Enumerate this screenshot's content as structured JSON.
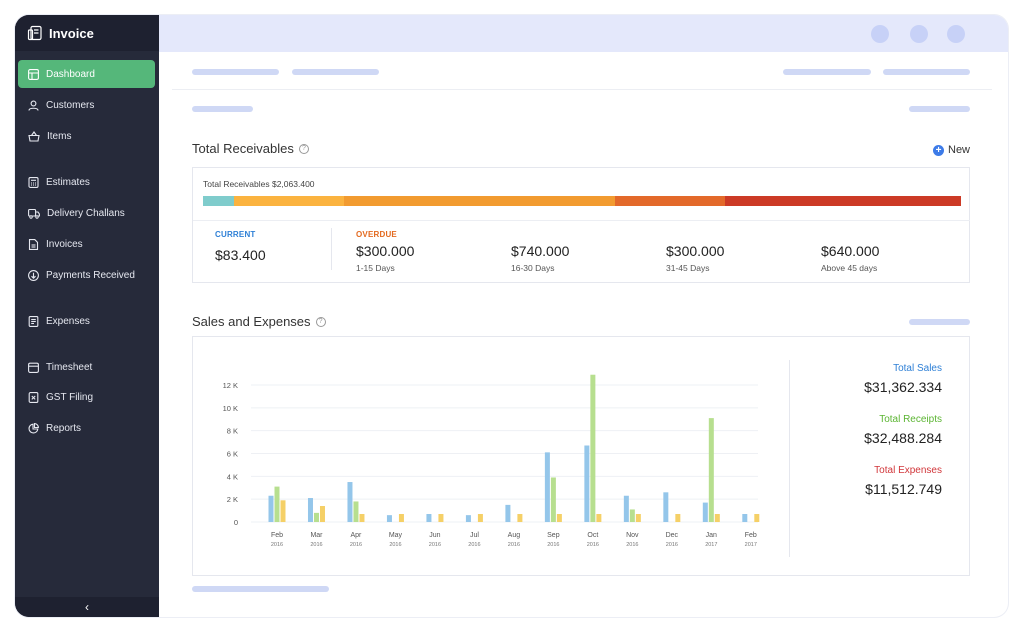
{
  "app": {
    "title": "Invoice"
  },
  "sidebar": {
    "items": [
      {
        "label": "Dashboard",
        "icon": "dashboard-icon",
        "active": true
      },
      {
        "label": "Customers",
        "icon": "user-icon"
      },
      {
        "label": "Items",
        "icon": "basket-icon"
      },
      {
        "label": "Estimates",
        "icon": "calculator-icon"
      },
      {
        "label": "Delivery Challans",
        "icon": "truck-icon"
      },
      {
        "label": "Invoices",
        "icon": "document-icon"
      },
      {
        "label": "Payments Received",
        "icon": "payment-icon"
      },
      {
        "label": "Expenses",
        "icon": "receipt-icon"
      },
      {
        "label": "Timesheet",
        "icon": "calendar-icon"
      },
      {
        "label": "GST Filing",
        "icon": "file-x-icon"
      },
      {
        "label": "Reports",
        "icon": "pie-chart-icon"
      }
    ],
    "collapse_glyph": "‹"
  },
  "receivables": {
    "title": "Total Receivables",
    "help": "?",
    "new_label": "New",
    "new_plus": "+",
    "total_label": "Total Receivables $2,063.400",
    "current": {
      "label": "CURRENT",
      "amount": "$83.400"
    },
    "overdue": {
      "label": "OVERDUE"
    },
    "buckets": [
      {
        "amount": "$300.000",
        "range": "1-15 Days"
      },
      {
        "amount": "$740.000",
        "range": "16-30 Days"
      },
      {
        "amount": "$300.000",
        "range": "31-45 Days"
      },
      {
        "amount": "$640.000",
        "range": "Above 45 days"
      }
    ],
    "colors": {
      "current": "#7fcccc",
      "b1": "#fbb33f",
      "b2": "#f29b30",
      "b3": "#e3692a",
      "b4": "#cc3a26",
      "current_text": "#2f80d6",
      "overdue_text": "#e36a20"
    }
  },
  "sales": {
    "title": "Sales and Expenses",
    "help": "?",
    "totals": [
      {
        "label": "Total Sales",
        "value": "$31,362.334",
        "color": "#2f80d6"
      },
      {
        "label": "Total Receipts",
        "value": "$32,488.284",
        "color": "#5cb533"
      },
      {
        "label": "Total Expenses",
        "value": "$11,512.749",
        "color": "#d1363a"
      }
    ]
  },
  "chart_data": {
    "type": "bar",
    "categories": [
      [
        "Feb",
        "2016"
      ],
      [
        "Mar",
        "2016"
      ],
      [
        "Apr",
        "2016"
      ],
      [
        "May",
        "2016"
      ],
      [
        "Jun",
        "2016"
      ],
      [
        "Jul",
        "2016"
      ],
      [
        "Aug",
        "2016"
      ],
      [
        "Sep",
        "2016"
      ],
      [
        "Oct",
        "2016"
      ],
      [
        "Nov",
        "2016"
      ],
      [
        "Dec",
        "2016"
      ],
      [
        "Jan",
        "2017"
      ],
      [
        "Feb",
        "2017"
      ]
    ],
    "y_ticks": [
      "0",
      "2 K",
      "4 K",
      "6 K",
      "8 K",
      "10 K",
      "12 K"
    ],
    "ylim": [
      0,
      12000
    ],
    "series": [
      {
        "values": [
          2300,
          2100,
          3500,
          600,
          700,
          600,
          1500,
          6100,
          6700,
          2300,
          2600,
          1700,
          700
        ],
        "color": "#94c6ea"
      },
      {
        "values": [
          3100,
          800,
          1800,
          0,
          0,
          0,
          0,
          3900,
          12900,
          1100,
          0,
          9100,
          0
        ],
        "color": "#b7df8f"
      },
      {
        "values": [
          1900,
          1400,
          700,
          700,
          700,
          700,
          700,
          700,
          700,
          700,
          700,
          700,
          700
        ],
        "color": "#f5d067"
      }
    ],
    "grid": true
  }
}
